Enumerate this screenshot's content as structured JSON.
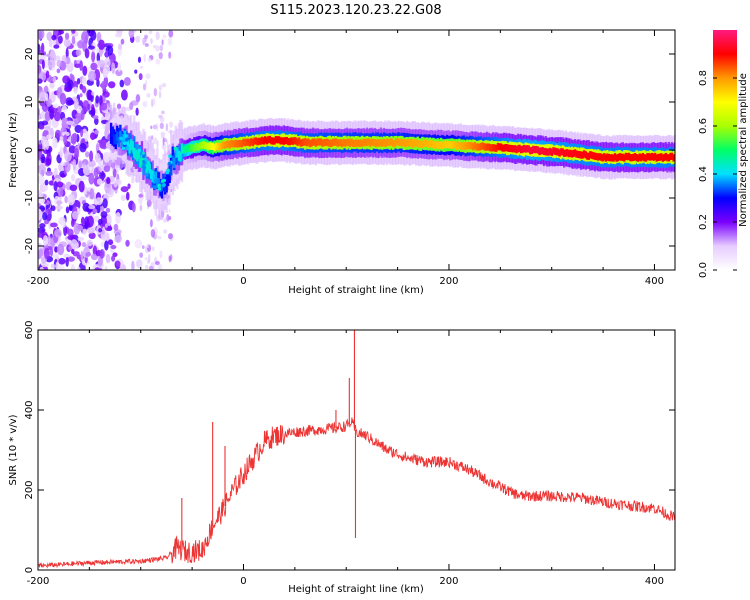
{
  "title": "S115.2023.120.23.22.G08",
  "chart_data": [
    {
      "type": "heatmap",
      "name": "spectrogram",
      "xlabel": "Height of straight line (km)",
      "ylabel": "Frequency (Hz)",
      "xlim": [
        -200,
        420
      ],
      "ylim": [
        -25,
        25
      ],
      "xticks": [
        -200,
        0,
        200,
        400
      ],
      "yticks": [
        -20,
        -10,
        0,
        10,
        20
      ],
      "colorbar": {
        "label": "Normalized spectral amplitude",
        "range": [
          0,
          1
        ],
        "ticks": [
          "0.0",
          "0.2",
          "0.4",
          "0.6",
          "0.8"
        ],
        "tick_values": [
          0,
          0.2,
          0.4,
          0.6,
          0.8
        ],
        "colors": [
          "#ffffff",
          "#e6ccff",
          "#7a00ff",
          "#0000ff",
          "#00e0ff",
          "#00ff66",
          "#aaff00",
          "#ffff00",
          "#ff9900",
          "#ff0000",
          "#ff1a80"
        ]
      },
      "ridge": {
        "x": [
          -130,
          -115,
          -100,
          -90,
          -82,
          -75,
          -70,
          -60,
          -50,
          -40,
          -30,
          -20,
          0,
          20,
          40,
          60,
          100,
          150,
          200,
          250,
          280,
          310,
          350,
          400,
          420
        ],
        "freq": [
          3,
          2,
          -2,
          -5,
          -8,
          -6,
          -2,
          0,
          0.5,
          1,
          0.5,
          1,
          1.5,
          2,
          2,
          1.5,
          1.5,
          1.5,
          1,
          0.5,
          0,
          -0.5,
          -1.5,
          -1.5,
          -1.5
        ],
        "amplitude": [
          0.3,
          0.4,
          0.45,
          0.4,
          0.35,
          0.3,
          0.35,
          0.45,
          0.55,
          0.6,
          0.7,
          0.8,
          0.85,
          0.9,
          0.9,
          0.85,
          0.82,
          0.8,
          0.75,
          0.9,
          0.95,
          0.92,
          0.9,
          0.9,
          0.9
        ]
      },
      "noise_region_x": [
        -200,
        -100
      ]
    },
    {
      "type": "line",
      "name": "snr",
      "xlabel": "Height of straight line (km)",
      "ylabel": "SNR (10 * v/v)",
      "xlim": [
        -200,
        420
      ],
      "ylim": [
        0,
        600
      ],
      "xticks": [
        -200,
        0,
        200,
        400
      ],
      "yticks": [
        0,
        200,
        400,
        600
      ],
      "color": "#ee3333",
      "x": [
        -200,
        -150,
        -100,
        -75,
        -65,
        -55,
        -40,
        -30,
        -20,
        -10,
        0,
        10,
        20,
        30,
        50,
        70,
        90,
        100,
        105,
        110,
        120,
        140,
        160,
        180,
        200,
        220,
        240,
        260,
        270,
        300,
        330,
        350,
        380,
        400,
        420
      ],
      "y": [
        10,
        18,
        22,
        30,
        55,
        45,
        50,
        110,
        150,
        200,
        240,
        280,
        320,
        335,
        345,
        350,
        355,
        360,
        370,
        345,
        335,
        300,
        280,
        270,
        270,
        250,
        220,
        195,
        185,
        185,
        180,
        170,
        160,
        155,
        130
      ],
      "spikes": [
        {
          "x": -60,
          "y": 180
        },
        {
          "x": -30,
          "y": 370
        },
        {
          "x": -18,
          "y": 310
        },
        {
          "x": 90,
          "y": 400
        },
        {
          "x": 103,
          "y": 480
        },
        {
          "x": 108,
          "y": 600
        },
        {
          "x": 109,
          "y": 80
        }
      ]
    }
  ]
}
